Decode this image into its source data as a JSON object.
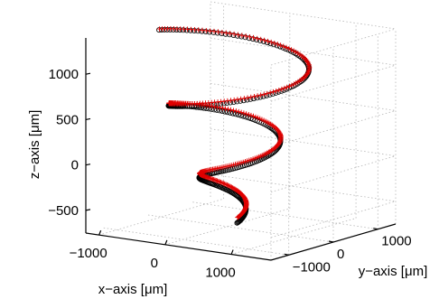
{
  "chart_data": {
    "type": "scatter",
    "title": "",
    "grid": true,
    "axes": {
      "x": {
        "label": "x−axis [μm]",
        "ticks": [
          -1000,
          0,
          1000
        ],
        "tick_labels": [
          "−1000",
          "0",
          "1000"
        ],
        "range": [
          -1200,
          1600
        ]
      },
      "y": {
        "label": "y−axis [μm]",
        "ticks": [
          -1000,
          0,
          1000
        ],
        "tick_labels": [
          "−1000",
          "0",
          "1000"
        ],
        "range": [
          -1400,
          1400
        ]
      },
      "z": {
        "label": "z−axis [μm]",
        "ticks": [
          -500,
          0,
          500,
          1000
        ],
        "tick_labels": [
          "−500",
          "0",
          "500",
          "1000"
        ],
        "range": [
          -750,
          1400
        ]
      }
    },
    "series": [
      {
        "marker": "circle",
        "color": "#000000",
        "helix": {
          "x_center": 200,
          "y_center": -200,
          "radius_start_um": 80,
          "radius_end_um": 1100,
          "turns": 2.5,
          "z_start_um": -650,
          "z_end_um": 1350
        }
      },
      {
        "marker": "plus",
        "color": "#e00000",
        "helix": {
          "x_center": 200,
          "y_center": -200,
          "radius_start_um": 80,
          "radius_end_um": 1100,
          "turns": 2.5,
          "z_start_um": -600,
          "z_end_um": 1350
        }
      }
    ]
  }
}
